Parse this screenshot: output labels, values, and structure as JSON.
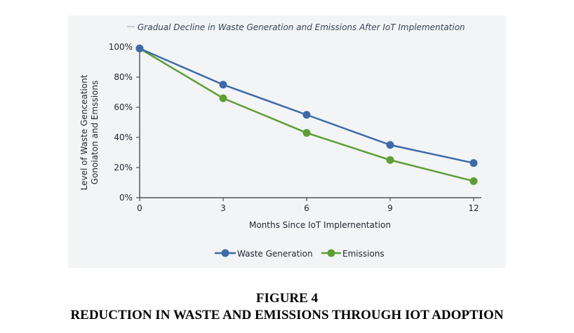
{
  "colors": {
    "waste": "#3d6aa8",
    "emissions": "#5e9e35",
    "axis": "#333333",
    "panel": "#f2f4f6"
  },
  "chart_data": {
    "type": "line",
    "title": "Gradual Decline in Waste Generation and Emissions After IoT Implementation",
    "xlabel": "Months Since IoT Implernentation",
    "ylabel_lines": [
      "Level of Waste Genceationt",
      "Gonoiaton and Emssions"
    ],
    "x": [
      0,
      3,
      6,
      9,
      12
    ],
    "x_tick_labels": [
      "0",
      "3",
      "6",
      "9",
      "12"
    ],
    "y_tick_labels": [
      "0%",
      "20%",
      "40%",
      "60%",
      "80%",
      "100%"
    ],
    "ylim": [
      0,
      100
    ],
    "xlim": [
      0,
      12
    ],
    "grid": false,
    "legend_position": "bottom",
    "series": [
      {
        "name": "Waste Generation",
        "values": [
          99,
          75,
          55,
          35,
          23
        ]
      },
      {
        "name": "Emissions",
        "values": [
          99,
          66,
          43,
          25,
          11
        ]
      }
    ]
  },
  "caption": {
    "figure_number": "FIGURE 4",
    "figure_title": "REDUCTION IN WASTE AND EMISSIONS THROUGH IOT ADOPTION"
  }
}
